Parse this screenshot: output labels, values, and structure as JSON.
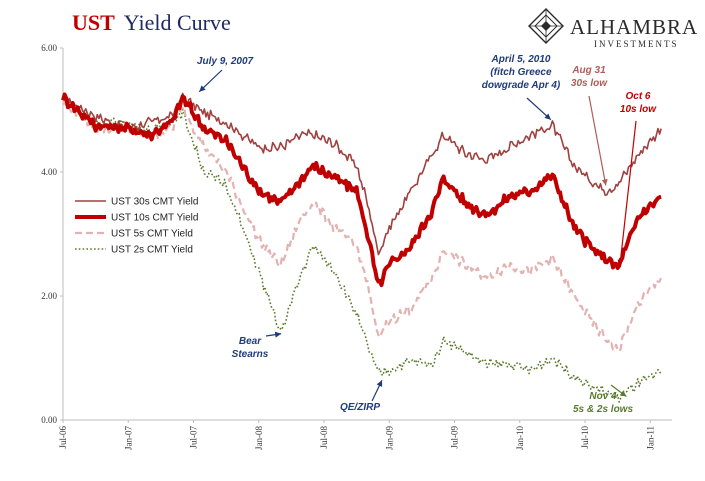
{
  "chart_data": {
    "type": "line",
    "title": "UST Yield Curve",
    "title_parts": [
      "UST",
      "Yield Curve"
    ],
    "xlabel": "",
    "ylabel": "",
    "ylim": [
      0,
      6
    ],
    "yticks": [
      "0.00",
      "2.00",
      "4.00",
      "6.00"
    ],
    "xlim": [
      "2006-07",
      "2011-03"
    ],
    "xticks": [
      "Jul-06",
      "Jan-07",
      "Jul-07",
      "Jan-08",
      "Jul-08",
      "Jan-09",
      "Jul-09",
      "Jan-10",
      "Jul-10",
      "Jan-11"
    ],
    "grid": false,
    "legend_position": "left",
    "series": [
      {
        "name": "UST 30s CMT Yield",
        "color": "#a0403f",
        "style": "solid",
        "points": [
          [
            "2006-07",
            5.2
          ],
          [
            "2006-10",
            4.9
          ],
          [
            "2007-01",
            4.7
          ],
          [
            "2007-03",
            4.8
          ],
          [
            "2007-05",
            4.9
          ],
          [
            "2007-06",
            5.2
          ],
          [
            "2007-08",
            4.95
          ],
          [
            "2007-10",
            4.8
          ],
          [
            "2008-01",
            4.4
          ],
          [
            "2008-03",
            4.4
          ],
          [
            "2008-05",
            4.6
          ],
          [
            "2008-06",
            4.6
          ],
          [
            "2008-08",
            4.45
          ],
          [
            "2008-10",
            4.1
          ],
          [
            "2008-11",
            3.5
          ],
          [
            "2008-12",
            2.7
          ],
          [
            "2009-01",
            3.1
          ],
          [
            "2009-03",
            3.7
          ],
          [
            "2009-05",
            4.3
          ],
          [
            "2009-06",
            4.6
          ],
          [
            "2009-08",
            4.3
          ],
          [
            "2009-10",
            4.2
          ],
          [
            "2009-12",
            4.4
          ],
          [
            "2010-02",
            4.6
          ],
          [
            "2010-04",
            4.75
          ],
          [
            "2010-06",
            4.1
          ],
          [
            "2010-08",
            3.8
          ],
          [
            "2010-09",
            3.7
          ],
          [
            "2010-10",
            3.8
          ],
          [
            "2010-12",
            4.3
          ],
          [
            "2011-02",
            4.7
          ]
        ]
      },
      {
        "name": "UST 10s CMT Yield",
        "color": "#c00000",
        "style": "thick",
        "points": [
          [
            "2006-07",
            5.2
          ],
          [
            "2006-10",
            4.75
          ],
          [
            "2007-01",
            4.7
          ],
          [
            "2007-03",
            4.6
          ],
          [
            "2007-05",
            4.8
          ],
          [
            "2007-06",
            5.2
          ],
          [
            "2007-08",
            4.7
          ],
          [
            "2007-10",
            4.5
          ],
          [
            "2008-01",
            3.7
          ],
          [
            "2008-03",
            3.5
          ],
          [
            "2008-05",
            3.9
          ],
          [
            "2008-06",
            4.1
          ],
          [
            "2008-08",
            3.9
          ],
          [
            "2008-10",
            3.7
          ],
          [
            "2008-11",
            3.0
          ],
          [
            "2008-12",
            2.15
          ],
          [
            "2009-01",
            2.5
          ],
          [
            "2009-03",
            2.8
          ],
          [
            "2009-05",
            3.4
          ],
          [
            "2009-06",
            3.9
          ],
          [
            "2009-08",
            3.5
          ],
          [
            "2009-10",
            3.3
          ],
          [
            "2009-12",
            3.6
          ],
          [
            "2010-02",
            3.7
          ],
          [
            "2010-04",
            3.95
          ],
          [
            "2010-06",
            3.1
          ],
          [
            "2010-08",
            2.7
          ],
          [
            "2010-09",
            2.6
          ],
          [
            "2010-10",
            2.45
          ],
          [
            "2010-12",
            3.3
          ],
          [
            "2011-02",
            3.6
          ]
        ]
      },
      {
        "name": "UST 5s CMT Yield",
        "color": "#e3b2b2",
        "style": "dashed",
        "points": [
          [
            "2006-07",
            5.1
          ],
          [
            "2006-10",
            4.7
          ],
          [
            "2007-01",
            4.7
          ],
          [
            "2007-03",
            4.55
          ],
          [
            "2007-05",
            4.7
          ],
          [
            "2007-06",
            5.05
          ],
          [
            "2007-08",
            4.4
          ],
          [
            "2007-10",
            4.0
          ],
          [
            "2008-01",
            2.9
          ],
          [
            "2008-03",
            2.5
          ],
          [
            "2008-05",
            3.3
          ],
          [
            "2008-06",
            3.5
          ],
          [
            "2008-08",
            3.1
          ],
          [
            "2008-10",
            2.8
          ],
          [
            "2008-11",
            2.2
          ],
          [
            "2008-12",
            1.3
          ],
          [
            "2009-01",
            1.6
          ],
          [
            "2009-03",
            1.8
          ],
          [
            "2009-05",
            2.3
          ],
          [
            "2009-06",
            2.75
          ],
          [
            "2009-08",
            2.5
          ],
          [
            "2009-10",
            2.3
          ],
          [
            "2009-12",
            2.5
          ],
          [
            "2010-02",
            2.4
          ],
          [
            "2010-04",
            2.6
          ],
          [
            "2010-06",
            2.0
          ],
          [
            "2010-08",
            1.5
          ],
          [
            "2010-09",
            1.3
          ],
          [
            "2010-10",
            1.1
          ],
          [
            "2010-12",
            1.9
          ],
          [
            "2011-02",
            2.3
          ]
        ]
      },
      {
        "name": "UST 2s CMT Yield",
        "color": "#5b7a2e",
        "style": "dotted",
        "points": [
          [
            "2006-07",
            5.15
          ],
          [
            "2006-10",
            4.8
          ],
          [
            "2007-01",
            4.8
          ],
          [
            "2007-03",
            4.65
          ],
          [
            "2007-05",
            4.8
          ],
          [
            "2007-06",
            4.95
          ],
          [
            "2007-08",
            4.0
          ],
          [
            "2007-10",
            3.8
          ],
          [
            "2008-01",
            2.4
          ],
          [
            "2008-03",
            1.4
          ],
          [
            "2008-05",
            2.4
          ],
          [
            "2008-06",
            2.8
          ],
          [
            "2008-08",
            2.4
          ],
          [
            "2008-10",
            1.7
          ],
          [
            "2008-11",
            1.2
          ],
          [
            "2008-12",
            0.75
          ],
          [
            "2009-01",
            0.8
          ],
          [
            "2009-03",
            0.95
          ],
          [
            "2009-05",
            0.9
          ],
          [
            "2009-06",
            1.3
          ],
          [
            "2009-08",
            1.1
          ],
          [
            "2009-10",
            0.9
          ],
          [
            "2009-12",
            0.9
          ],
          [
            "2010-02",
            0.8
          ],
          [
            "2010-04",
            1.0
          ],
          [
            "2010-06",
            0.7
          ],
          [
            "2010-08",
            0.5
          ],
          [
            "2010-09",
            0.45
          ],
          [
            "2010-10",
            0.35
          ],
          [
            "2010-12",
            0.6
          ],
          [
            "2011-02",
            0.75
          ]
        ]
      }
    ],
    "annotations": [
      {
        "text": [
          "July 9, 2007"
        ],
        "color": "#1f3b7a",
        "at": [
          "2007-07-09",
          5.25
        ]
      },
      {
        "text": [
          "Bear",
          "Stearns"
        ],
        "color": "#1f3b7a",
        "at": [
          "2008-03-14",
          1.4
        ]
      },
      {
        "text": [
          "QE/ZIRP"
        ],
        "color": "#1f3b7a",
        "at": [
          "2008-12-16",
          0.7
        ]
      },
      {
        "text": [
          "April 5, 2010",
          "(fitch Greece",
          "dowgrade Apr 4)"
        ],
        "color": "#1f3b7a",
        "at": [
          "2010-04-05",
          4.8
        ]
      },
      {
        "text": [
          "Aug 31",
          "30s low"
        ],
        "color": "#b05c57",
        "at": [
          "2010-08-31",
          3.72
        ]
      },
      {
        "text": [
          "Oct 6",
          "10s low"
        ],
        "color": "#c00000",
        "at": [
          "2010-10-06",
          2.42
        ]
      },
      {
        "text": [
          "Nov 4",
          "5s & 2s lows"
        ],
        "color": "#5b7a2e",
        "at": [
          "2010-11-04",
          0.34
        ]
      }
    ]
  },
  "logo": {
    "name": "ALHAMBRA",
    "tagline": "INVESTMENTS"
  }
}
